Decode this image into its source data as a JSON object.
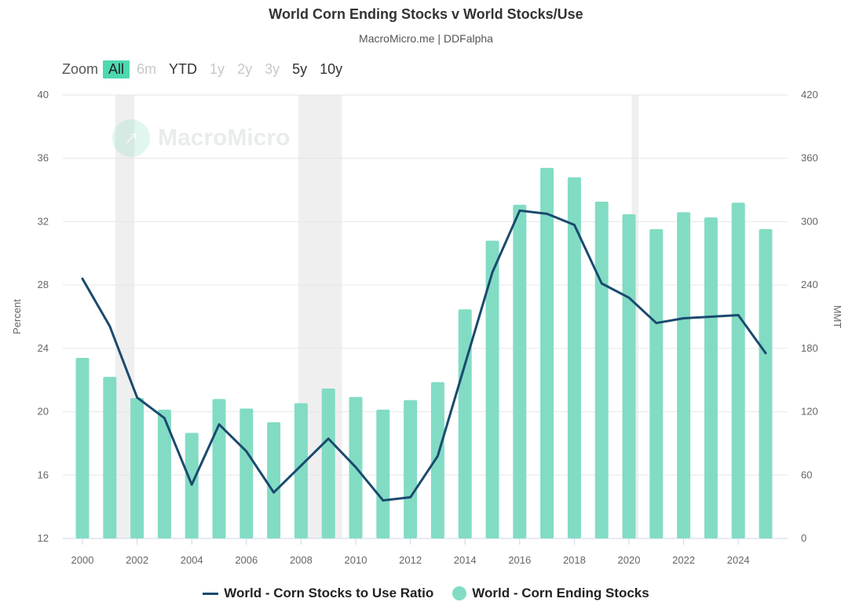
{
  "title": "World Corn Ending Stocks v World Stocks/Use",
  "subtitle": "MacroMicro.me | DDFalpha",
  "zoom": {
    "label": "Zoom",
    "buttons": [
      {
        "label": "All",
        "state": "active"
      },
      {
        "label": "6m",
        "state": "disabled"
      },
      {
        "label": "YTD",
        "state": "enabled"
      },
      {
        "label": "1y",
        "state": "disabled"
      },
      {
        "label": "2y",
        "state": "disabled"
      },
      {
        "label": "3y",
        "state": "disabled"
      },
      {
        "label": "5y",
        "state": "enabled"
      },
      {
        "label": "10y",
        "state": "enabled"
      }
    ]
  },
  "watermark": {
    "text": "MacroMicro",
    "icon": "macromicro-logo-icon"
  },
  "colors": {
    "bar": "#82dcc4",
    "line": "#1a4a6e",
    "recession": "#efefef",
    "grid": "#e6e6e6"
  },
  "chart_data": {
    "type": "bar",
    "x": [
      2000,
      2001,
      2002,
      2003,
      2004,
      2005,
      2006,
      2007,
      2008,
      2009,
      2010,
      2011,
      2012,
      2013,
      2014,
      2015,
      2016,
      2017,
      2018,
      2019,
      2020,
      2021,
      2022,
      2023,
      2024,
      2025
    ],
    "xticks": [
      "2000",
      "2002",
      "2004",
      "2006",
      "2008",
      "2010",
      "2012",
      "2014",
      "2016",
      "2018",
      "2020",
      "2022",
      "2024"
    ],
    "series": [
      {
        "name": "World - Corn Stocks to Use Ratio",
        "type": "line",
        "axis": "left",
        "values": [
          28.4,
          25.4,
          20.9,
          19.6,
          15.4,
          19.2,
          17.5,
          14.9,
          16.6,
          18.3,
          16.5,
          14.4,
          14.6,
          17.2,
          23.0,
          28.8,
          32.7,
          32.5,
          31.8,
          28.1,
          27.2,
          25.6,
          25.9,
          26.0,
          26.1,
          23.7
        ]
      },
      {
        "name": "World - Corn Ending Stocks",
        "type": "bar",
        "axis": "right",
        "values": [
          171,
          153,
          133,
          122,
          100,
          132,
          123,
          110,
          128,
          142,
          134,
          122,
          131,
          148,
          217,
          282,
          316,
          351,
          342,
          319,
          307,
          293,
          309,
          304,
          318,
          293
        ]
      }
    ],
    "y_left": {
      "label": "Percent",
      "ylim": [
        12,
        40
      ],
      "ticks": [
        "12",
        "16",
        "20",
        "24",
        "28",
        "32",
        "36",
        "40"
      ]
    },
    "y_right": {
      "label": "MMT",
      "ylim": [
        0,
        420
      ],
      "ticks": [
        "0",
        "60",
        "120",
        "180",
        "240",
        "300",
        "360",
        "420"
      ]
    },
    "shaded_ranges": [
      [
        2001.2,
        2001.9
      ],
      [
        2007.9,
        2009.5
      ],
      [
        2020.1,
        2020.35
      ]
    ],
    "grid": true,
    "legend_position": "bottom-center"
  }
}
